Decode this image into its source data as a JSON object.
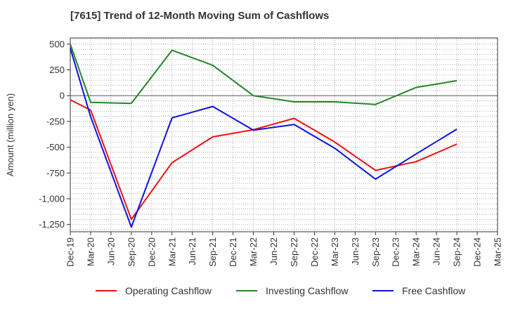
{
  "chart_data": {
    "type": "line",
    "title": "[7615]  Trend of 12-Month Moving Sum of Cashflows",
    "ylabel": "Amount (million yen)",
    "xlabel": "",
    "categories": [
      "Dec-19",
      "Mar-20",
      "Jun-20",
      "Sep-20",
      "Dec-20",
      "Mar-21",
      "Jun-21",
      "Sep-21",
      "Dec-21",
      "Mar-22",
      "Jun-22",
      "Sep-22",
      "Dec-22",
      "Mar-23",
      "Jun-23",
      "Sep-23",
      "Dec-23",
      "Mar-24",
      "Jun-24",
      "Sep-24",
      "Dec-24",
      "Mar-25"
    ],
    "ylim": [
      -1320,
      560
    ],
    "yticks": [
      500,
      250,
      0,
      -250,
      -500,
      -750,
      -1000,
      -1250
    ],
    "ytick_labels": [
      "500",
      "250",
      "0",
      "-250",
      "-500",
      "-750",
      "-1,000",
      "-1,250"
    ],
    "grid": true,
    "legend_position": "bottom",
    "series": [
      {
        "name": "Operating Cashflow",
        "color": "#ee1111",
        "values": [
          -40,
          -140,
          null,
          -1200,
          null,
          -650,
          null,
          -400,
          null,
          -330,
          null,
          -220,
          null,
          -450,
          null,
          -725,
          null,
          -640,
          null,
          -470,
          null,
          null
        ]
      },
      {
        "name": "Investing Cashflow",
        "color": "#228822",
        "values": [
          500,
          -65,
          null,
          -75,
          null,
          440,
          null,
          295,
          null,
          0,
          null,
          -60,
          null,
          -60,
          null,
          -85,
          null,
          80,
          null,
          145,
          null,
          null
        ]
      },
      {
        "name": "Free Cashflow",
        "color": "#1111dd",
        "values": [
          460,
          -205,
          null,
          -1275,
          null,
          -215,
          null,
          -105,
          null,
          -335,
          null,
          -280,
          null,
          -510,
          null,
          -810,
          null,
          -565,
          null,
          -325,
          null,
          null
        ]
      }
    ]
  }
}
